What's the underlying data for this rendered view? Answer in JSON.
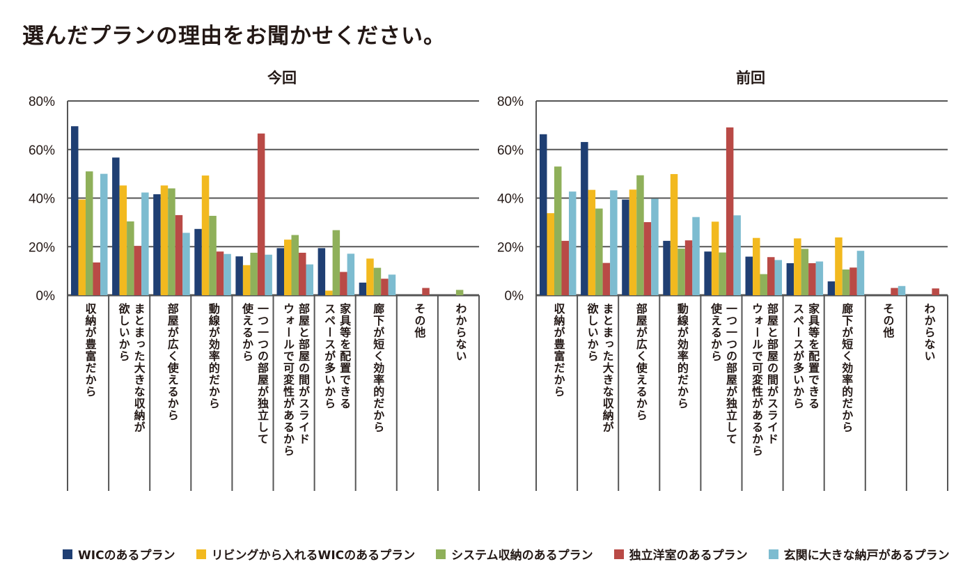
{
  "page": {
    "title": "選んだプランの理由をお聞かせください。"
  },
  "colors": {
    "navy": "#1f3f73",
    "yellow": "#f2b91f",
    "green": "#8fb05a",
    "red": "#b94a46",
    "cyan": "#7dbcd0",
    "grid": "#555555"
  },
  "legend": [
    {
      "label": "WICのあるプラン",
      "color": "#1f3f73"
    },
    {
      "label": "リビングから入れるWICのあるプラン",
      "color": "#f2b91f"
    },
    {
      "label": "システム収納のあるプラン",
      "color": "#8fb05a"
    },
    {
      "label": "独立洋室のあるプラン",
      "color": "#b94a46"
    },
    {
      "label": "玄関に大きな納戸があるプラン",
      "color": "#7dbcd0"
    }
  ],
  "chart_data": [
    {
      "type": "bar",
      "title": "今回",
      "xlabel": "",
      "ylabel": "",
      "ylim": [
        0,
        80
      ],
      "yticks": [
        "0%",
        "20%",
        "40%",
        "60%",
        "80%"
      ],
      "grid": true,
      "legend_position": "bottom",
      "categories": [
        "収納が豊富だから",
        "まとまった大きな収納が欲しいから",
        "部屋が広く使えるから",
        "動線が効率的だから",
        "一つ一つの部屋が独立して使えるから",
        "部屋と部屋の間がスライドウォールで可変性があるから",
        "家具等を配置できるスペースが多いから",
        "廊下が短く効率的だから",
        "その他",
        "わからない"
      ],
      "category_lines": [
        [
          "収納が豊富だから"
        ],
        [
          "まとまった大きな収納が",
          "欲しいから"
        ],
        [
          "部屋が広く使えるから"
        ],
        [
          "動線が効率的だから"
        ],
        [
          "一つ一つの部屋が独立して",
          "使えるから"
        ],
        [
          "部屋と部屋の間がスライド",
          "ウォールで可変性があるから"
        ],
        [
          "家具等を配置できる",
          "スペースが多いから"
        ],
        [
          "廊下が短く効率的だから"
        ],
        [
          "その他"
        ],
        [
          "わからない"
        ]
      ],
      "series": [
        {
          "name": "WICのあるプラン",
          "values": [
            69.6,
            56.7,
            41.6,
            27.3,
            16.0,
            19.4,
            19.4,
            5.2,
            0,
            0
          ]
        },
        {
          "name": "リビングから入れるWICのあるプラン",
          "values": [
            39.4,
            45.2,
            45.2,
            49.3,
            12.4,
            22.9,
            1.9,
            15.1,
            0,
            0
          ]
        },
        {
          "name": "システム収納のあるプラン",
          "values": [
            51.0,
            30.4,
            44.0,
            32.7,
            17.5,
            24.8,
            26.8,
            11.3,
            0,
            2.2
          ]
        },
        {
          "name": "独立洋室のあるプラン",
          "values": [
            13.5,
            20.3,
            33.0,
            18.0,
            66.6,
            17.5,
            9.6,
            6.8,
            3.0,
            0
          ]
        },
        {
          "name": "玄関に大きな納戸があるプラン",
          "values": [
            50.0,
            42.3,
            25.7,
            17.0,
            16.7,
            12.7,
            17.1,
            8.5,
            0,
            0
          ]
        }
      ]
    },
    {
      "type": "bar",
      "title": "前回",
      "xlabel": "",
      "ylabel": "",
      "ylim": [
        0,
        80
      ],
      "yticks": [
        "0%",
        "20%",
        "40%",
        "60%",
        "80%"
      ],
      "grid": true,
      "legend_position": "bottom",
      "categories": [
        "収納が豊富だから",
        "まとまった大きな収納が欲しいから",
        "部屋が広く使えるから",
        "動線が効率的だから",
        "一つ一つの部屋が独立して使えるから",
        "部屋と部屋の間がスライドウォールで可変性があるから",
        "家具等を配置できるスペースが多いから",
        "廊下が短く効率的だから",
        "その他",
        "わからない"
      ],
      "category_lines": [
        [
          "収納が豊富だから"
        ],
        [
          "まとまった大きな収納が",
          "欲しいから"
        ],
        [
          "部屋が広く使えるから"
        ],
        [
          "動線が効率的だから"
        ],
        [
          "一つ一つの部屋が独立して",
          "使えるから"
        ],
        [
          "部屋と部屋の間がスライド",
          "ウォールで可変性があるから"
        ],
        [
          "家具等を配置できる",
          "スペースが多いから"
        ],
        [
          "廊下が短く効率的だから"
        ],
        [
          "その他"
        ],
        [
          "わからない"
        ]
      ],
      "series": [
        {
          "name": "WICのあるプラン",
          "values": [
            66.3,
            63.1,
            39.4,
            22.4,
            18.0,
            15.9,
            13.2,
            5.7,
            0,
            0
          ]
        },
        {
          "name": "リビングから入れるWICのあるプラン",
          "values": [
            33.8,
            43.4,
            43.5,
            49.9,
            30.3,
            23.6,
            23.4,
            23.8,
            0,
            0
          ]
        },
        {
          "name": "システム収納のあるプラン",
          "values": [
            53.0,
            35.7,
            49.4,
            19.2,
            17.6,
            8.7,
            19.1,
            10.6,
            0,
            0
          ]
        },
        {
          "name": "独立洋室のあるプラン",
          "values": [
            22.4,
            13.3,
            30.1,
            22.6,
            69.1,
            15.7,
            13.2,
            11.4,
            3.0,
            2.8
          ]
        },
        {
          "name": "玄関に大きな納戸があるプラン",
          "values": [
            42.7,
            43.2,
            39.7,
            32.2,
            32.9,
            14.5,
            13.9,
            18.3,
            3.8,
            0
          ]
        }
      ]
    }
  ]
}
